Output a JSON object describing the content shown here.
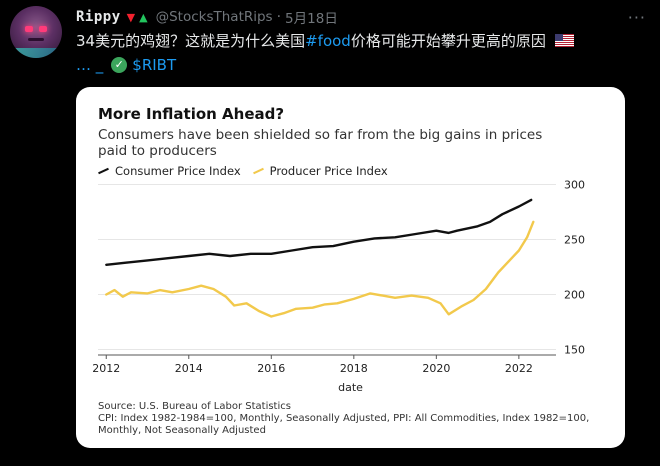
{
  "tweet": {
    "display_name": "Rippy",
    "handle": "@StocksThatRips",
    "separator": "·",
    "date": "5月18日",
    "more": "···",
    "text_line1": "34美元的鸡翅？这就是为什么美国",
    "hashtag": "#food",
    "text_line1_end": "价格可能开始攀升更高的原因",
    "text_line2_prefix": "… _",
    "cashtag": "$RIBT",
    "accent_color": "#1d9bf0"
  },
  "chart_card": {
    "title": "More Inflation Ahead?",
    "subtitle": "Consumers have been shielded so far from the big gains in prices paid to producers",
    "source_line1": "Source: U.S. Bureau of Labor Statistics",
    "source_line2": "CPI: Index 1982-1984=100, Monthly, Seasonally Adjusted, PPI: All Commodities, Index 1982=100, Monthly, Not Seasonally Adjusted"
  },
  "chart_data": {
    "type": "line",
    "title": "More Inflation Ahead?",
    "subtitle": "Consumers have been shielded so far from the big gains in prices paid to producers",
    "xlabel": "date",
    "ylabel": "",
    "xlim": [
      2011.8,
      2022.9
    ],
    "ylim": [
      145,
      305
    ],
    "x_ticks": [
      2012,
      2014,
      2016,
      2018,
      2020,
      2022
    ],
    "y_ticks": [
      150,
      200,
      250,
      300
    ],
    "grid": true,
    "legend": "top-left",
    "series": [
      {
        "name": "Consumer Price Index",
        "color": "#111111",
        "points": [
          [
            2012.0,
            227
          ],
          [
            2012.5,
            229
          ],
          [
            2013.0,
            231
          ],
          [
            2013.5,
            233
          ],
          [
            2014.0,
            235
          ],
          [
            2014.5,
            237
          ],
          [
            2015.0,
            235
          ],
          [
            2015.5,
            237
          ],
          [
            2016.0,
            237
          ],
          [
            2016.5,
            240
          ],
          [
            2017.0,
            243
          ],
          [
            2017.5,
            244
          ],
          [
            2018.0,
            248
          ],
          [
            2018.5,
            251
          ],
          [
            2019.0,
            252
          ],
          [
            2019.5,
            255
          ],
          [
            2020.0,
            258
          ],
          [
            2020.3,
            256
          ],
          [
            2020.5,
            258
          ],
          [
            2021.0,
            262
          ],
          [
            2021.3,
            266
          ],
          [
            2021.6,
            273
          ],
          [
            2022.0,
            280
          ],
          [
            2022.3,
            286
          ]
        ]
      },
      {
        "name": "Producer Price Index",
        "color": "#f2c94c",
        "points": [
          [
            2012.0,
            200
          ],
          [
            2012.2,
            204
          ],
          [
            2012.4,
            198
          ],
          [
            2012.6,
            202
          ],
          [
            2013.0,
            201
          ],
          [
            2013.3,
            204
          ],
          [
            2013.6,
            202
          ],
          [
            2014.0,
            205
          ],
          [
            2014.3,
            208
          ],
          [
            2014.6,
            205
          ],
          [
            2014.9,
            198
          ],
          [
            2015.1,
            190
          ],
          [
            2015.4,
            192
          ],
          [
            2015.7,
            185
          ],
          [
            2016.0,
            180
          ],
          [
            2016.3,
            183
          ],
          [
            2016.6,
            187
          ],
          [
            2017.0,
            188
          ],
          [
            2017.3,
            191
          ],
          [
            2017.6,
            192
          ],
          [
            2018.0,
            196
          ],
          [
            2018.4,
            201
          ],
          [
            2018.7,
            199
          ],
          [
            2019.0,
            197
          ],
          [
            2019.4,
            199
          ],
          [
            2019.8,
            197
          ],
          [
            2020.1,
            192
          ],
          [
            2020.3,
            182
          ],
          [
            2020.6,
            189
          ],
          [
            2020.9,
            195
          ],
          [
            2021.2,
            205
          ],
          [
            2021.5,
            220
          ],
          [
            2021.8,
            232
          ],
          [
            2022.0,
            240
          ],
          [
            2022.2,
            252
          ],
          [
            2022.35,
            266
          ]
        ]
      }
    ]
  }
}
